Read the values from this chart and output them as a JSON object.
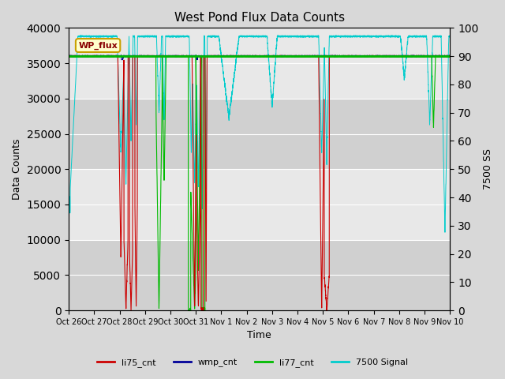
{
  "title": "West Pond Flux Data Counts",
  "xlabel": "Time",
  "ylabel_left": "Data Counts",
  "ylabel_right": "7500 SS",
  "ylim_left": [
    0,
    40000
  ],
  "ylim_right": [
    0,
    100
  ],
  "yticks_left": [
    0,
    5000,
    10000,
    15000,
    20000,
    25000,
    30000,
    35000,
    40000
  ],
  "yticks_right": [
    0,
    10,
    20,
    30,
    40,
    50,
    60,
    70,
    80,
    90,
    100
  ],
  "bg_color": "#d8d8d8",
  "plot_bg_light": "#e8e8e8",
  "plot_bg_dark": "#d0d0d0",
  "grid_color": "#ffffff",
  "wp_flux_box_color": "#ffffcc",
  "wp_flux_border_color": "#c8a000",
  "wp_flux_text_color": "#880000",
  "li75_color": "#cc0000",
  "wmp_color": "#000099",
  "li77_color": "#00bb00",
  "signal_color": "#00cccc",
  "wp_flux_level": 36000,
  "xtick_labels": [
    "Oct 26",
    "Oct 27",
    "Oct 28",
    "Oct 29",
    "Oct 30",
    "Oct 31",
    "Nov 1",
    "Nov 2",
    "Nov 3",
    "Nov 4",
    "Nov 5",
    "Nov 6",
    "Nov 7",
    "Nov 8",
    "Nov 9",
    "Nov 10"
  ],
  "xtick_positions": [
    0,
    1,
    2,
    3,
    4,
    5,
    6,
    7,
    8,
    9,
    10,
    11,
    12,
    13,
    14,
    15
  ]
}
